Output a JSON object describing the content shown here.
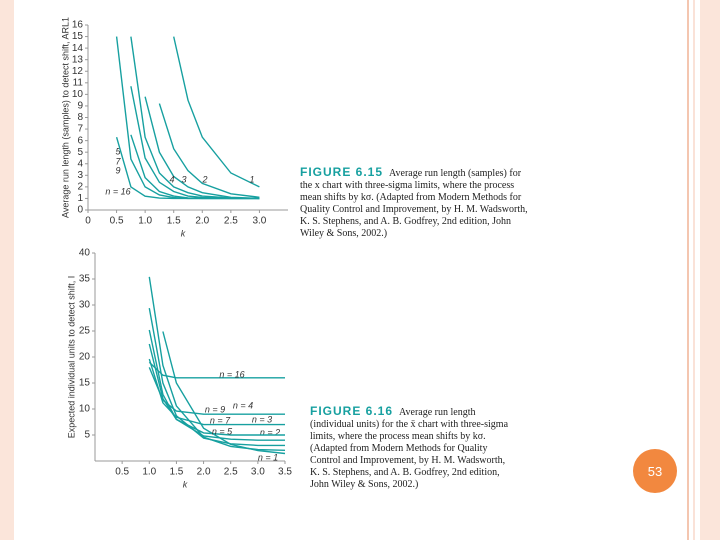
{
  "chart_data": [
    {
      "type": "line",
      "y_label": "Average run length (samples) to detect shift, ARL1",
      "x_label": "k",
      "caption_label": "FIGURE 6.15",
      "caption": "Average run length (samples) for the x chart with three-sigma limits, where the process mean shifts by kσ. (Adapted from Modern Methods for Quality Control and Improvement, by H. M. Wadsworth, K. S. Stephens, and A. B. Godfrey, 2nd edition, John Wiley & Sons, 2002.)",
      "x": [
        0.5,
        0.75,
        1,
        1.25,
        1.5,
        1.75,
        2,
        2.5,
        3
      ],
      "xlim": [
        0,
        3.5
      ],
      "xticks": [
        0,
        0.5,
        {
          "value": 1,
          "label": "1.0"
        },
        1.5,
        {
          "value": 2,
          "label": "2.0"
        },
        2.5,
        {
          "value": 3,
          "label": "3.0"
        }
      ],
      "ylim": [
        0,
        16
      ],
      "yticks": [
        0,
        1,
        2,
        3,
        4,
        5,
        6,
        7,
        8,
        9,
        10,
        11,
        12,
        13,
        14,
        15,
        16
      ],
      "color": "#17a0a0",
      "series": [
        {
          "name": "1",
          "values": [
            null,
            null,
            null,
            null,
            15.0,
            9.5,
            6.3,
            3.2,
            2.0
          ]
        },
        {
          "name": "2",
          "values": [
            null,
            null,
            null,
            9.2,
            5.3,
            3.4,
            2.3,
            1.4,
            1.1
          ]
        },
        {
          "name": "3",
          "values": [
            null,
            null,
            9.8,
            5.0,
            2.9,
            2.0,
            1.5,
            1.1,
            1.0
          ]
        },
        {
          "name": "4",
          "values": [
            null,
            15.0,
            6.3,
            3.2,
            2.0,
            1.5,
            1.2,
            1.05,
            1.0
          ]
        },
        {
          "name": "5",
          "values": [
            null,
            10.7,
            4.5,
            2.4,
            1.6,
            1.2,
            1.08,
            1.0,
            1.0
          ]
        },
        {
          "name": "7",
          "values": [
            null,
            6.5,
            2.8,
            1.6,
            1.2,
            1.05,
            1.0,
            1.0,
            1.0
          ]
        },
        {
          "name": "9",
          "values": [
            15.0,
            4.4,
            2.0,
            1.3,
            1.07,
            1.0,
            1.0,
            1.0,
            1.0
          ]
        },
        {
          "name": "n = 16",
          "values": [
            6.3,
            2.0,
            1.19,
            1.03,
            1.0,
            1.0,
            1.0,
            1.0,
            1.0
          ]
        }
      ]
    },
    {
      "type": "line",
      "y_label": "Expected individual units to detect shift, I",
      "x_label": "k",
      "caption_label": "FIGURE 6.16",
      "caption": "Average run length (individual units) for the x̄ chart with three-sigma limits, where the process mean shifts by kσ. (Adapted from Modern Methods for Quality Control and Improvement, by H. M. Wadsworth, K. S. Stephens, and A. B. Godfrey, 2nd edition, John Wiley & Sons, 2002.)",
      "x": [
        1,
        1.25,
        1.5,
        2,
        2.5,
        3,
        3.5
      ],
      "xlim": [
        0,
        3.5
      ],
      "xticks": [
        0.5,
        {
          "value": 1,
          "label": "1.0"
        },
        1.5,
        {
          "value": 2,
          "label": "2.0"
        },
        2.5,
        {
          "value": 3,
          "label": "3.0"
        },
        3.5
      ],
      "ylim": [
        0,
        40
      ],
      "yticks": [
        5,
        10,
        15,
        20,
        25,
        30,
        35,
        40
      ],
      "color": "#17a0a0",
      "series": [
        {
          "name": "n = 1",
          "values": [
            null,
            24.9,
            15.0,
            6.3,
            3.2,
            2.0,
            1.45
          ]
        },
        {
          "name": "n = 2",
          "values": [
            35.4,
            18.4,
            10.6,
            4.6,
            2.8,
            2.2,
            2.05
          ]
        },
        {
          "name": "n = 3",
          "values": [
            29.4,
            15.0,
            8.7,
            4.4,
            3.3,
            3.0,
            3.0
          ]
        },
        {
          "name": "n = 4",
          "values": [
            25.2,
            12.8,
            8.0,
            4.8,
            4.2,
            4.0,
            4.0
          ]
        },
        {
          "name": "n = 5",
          "values": [
            22.5,
            12.0,
            8.0,
            5.4,
            5.0,
            5.0,
            5.0
          ]
        },
        {
          "name": "n = 7",
          "values": [
            19.6,
            11.2,
            8.4,
            7.0,
            7.0,
            7.0,
            7.0
          ]
        },
        {
          "name": "n = 9",
          "values": [
            18.0,
            11.7,
            9.6,
            9.0,
            9.0,
            9.0,
            9.0
          ]
        },
        {
          "name": "n = 16",
          "values": [
            19.0,
            16.5,
            16.0,
            16.0,
            16.0,
            16.0,
            16.0
          ]
        }
      ]
    }
  ],
  "slide": {
    "page_number": "53"
  }
}
